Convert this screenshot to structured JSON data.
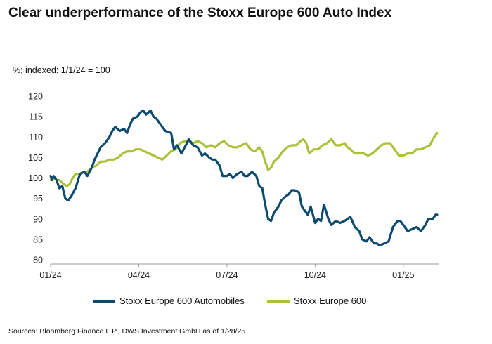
{
  "header": {
    "title": "Clear underperformance of the Stoxx Europe 600 Auto Index"
  },
  "colors": {
    "automobiles": "#0d4a70",
    "europe600": "#a9c23a",
    "axis": "#9a9a9a"
  },
  "chart_data": {
    "type": "line",
    "title": "Clear underperformance of the Stoxx Europe 600 Auto Index",
    "ylabel": "%; indexed: 1/1/24 = 100",
    "xlabel": "",
    "ylim": [
      80,
      120
    ],
    "yticks": [
      80,
      85,
      90,
      95,
      100,
      105,
      110,
      115,
      120
    ],
    "xlim": [
      0,
      13.2
    ],
    "xticks": [
      {
        "label": "01/24",
        "at": 0
      },
      {
        "label": "04/24",
        "at": 3
      },
      {
        "label": "07/24",
        "at": 6
      },
      {
        "label": "10/24",
        "at": 9
      },
      {
        "label": "01/25",
        "at": 12
      }
    ],
    "x_unit": "months since 1/1/24",
    "grid": false,
    "legend_position": "bottom",
    "series": [
      {
        "name": "Stoxx Europe 600 Automobiles",
        "color": "#0d4a70",
        "x": [
          0,
          0.05,
          0.1,
          0.2,
          0.3,
          0.4,
          0.5,
          0.6,
          0.7,
          0.85,
          1.0,
          1.15,
          1.25,
          1.4,
          1.5,
          1.6,
          1.7,
          1.85,
          2.0,
          2.1,
          2.2,
          2.35,
          2.5,
          2.6,
          2.7,
          2.8,
          2.95,
          3.05,
          3.15,
          3.25,
          3.4,
          3.5,
          3.6,
          3.75,
          3.9,
          4.1,
          4.2,
          4.3,
          4.45,
          4.6,
          4.7,
          4.85,
          5.0,
          5.15,
          5.25,
          5.4,
          5.5,
          5.6,
          5.75,
          5.85,
          6.0,
          6.1,
          6.2,
          6.35,
          6.5,
          6.6,
          6.7,
          6.85,
          7.0,
          7.1,
          7.2,
          7.3,
          7.4,
          7.5,
          7.6,
          7.75,
          7.85,
          8.0,
          8.1,
          8.2,
          8.3,
          8.45,
          8.55,
          8.65,
          8.75,
          8.85,
          9.0,
          9.1,
          9.2,
          9.3,
          9.45,
          9.55,
          9.7,
          9.85,
          10.0,
          10.1,
          10.2,
          10.35,
          10.5,
          10.6,
          10.75,
          10.85,
          11.0,
          11.1,
          11.2,
          11.35,
          11.5,
          11.65,
          11.8,
          11.9,
          12.0,
          12.15,
          12.3,
          12.45,
          12.6,
          12.75,
          12.85,
          13.0,
          13.1,
          13.15
        ],
        "values": [
          100.5,
          99.5,
          100.5,
          99.5,
          97.5,
          98.0,
          95.0,
          94.5,
          95.5,
          97.5,
          101.0,
          101.5,
          100.5,
          102.5,
          104.5,
          106.0,
          107.5,
          108.5,
          110.0,
          111.5,
          112.5,
          111.5,
          112.0,
          111.0,
          113.0,
          114.5,
          115.0,
          116.0,
          116.5,
          115.5,
          116.5,
          115.0,
          114.5,
          113.0,
          111.5,
          111.0,
          107.0,
          108.0,
          106.0,
          108.0,
          109.5,
          108.0,
          107.5,
          105.5,
          106.0,
          105.0,
          104.5,
          104.5,
          103.0,
          100.5,
          100.5,
          101.0,
          100.0,
          101.0,
          101.5,
          100.5,
          100.5,
          101.5,
          100.5,
          98.0,
          97.5,
          93.5,
          90.0,
          89.5,
          91.5,
          93.0,
          94.5,
          95.5,
          96.0,
          97.0,
          97.0,
          96.5,
          93.0,
          92.0,
          91.0,
          93.0,
          89.0,
          90.0,
          89.5,
          93.5,
          90.0,
          88.5,
          89.5,
          89.0,
          89.5,
          90.0,
          90.5,
          88.0,
          87.0,
          85.0,
          84.5,
          85.5,
          84.0,
          84.0,
          83.5,
          84.0,
          84.5,
          88.0,
          89.5,
          89.5,
          88.5,
          87.0,
          87.5,
          88.0,
          87.0,
          88.5,
          90.0,
          90.0,
          91.0,
          91.0
        ]
      },
      {
        "name": "Stoxx Europe 600",
        "color": "#a9c23a",
        "x": [
          0,
          0.1,
          0.2,
          0.3,
          0.45,
          0.55,
          0.65,
          0.75,
          0.85,
          1.0,
          1.1,
          1.25,
          1.4,
          1.55,
          1.7,
          1.85,
          2.0,
          2.15,
          2.3,
          2.45,
          2.6,
          2.75,
          2.9,
          3.05,
          3.2,
          3.35,
          3.5,
          3.65,
          3.8,
          3.95,
          4.1,
          4.25,
          4.4,
          4.55,
          4.7,
          4.85,
          5.0,
          5.15,
          5.3,
          5.45,
          5.6,
          5.75,
          5.9,
          6.05,
          6.2,
          6.35,
          6.5,
          6.65,
          6.8,
          6.95,
          7.1,
          7.2,
          7.3,
          7.4,
          7.5,
          7.6,
          7.75,
          7.9,
          8.05,
          8.2,
          8.35,
          8.5,
          8.6,
          8.7,
          8.8,
          8.95,
          9.1,
          9.25,
          9.4,
          9.55,
          9.7,
          9.85,
          10.0,
          10.1,
          10.2,
          10.35,
          10.5,
          10.65,
          10.8,
          10.95,
          11.1,
          11.25,
          11.4,
          11.55,
          11.7,
          11.85,
          12.0,
          12.15,
          12.3,
          12.45,
          12.6,
          12.75,
          12.9,
          13.05,
          13.15
        ],
        "values": [
          99.5,
          100.0,
          99.5,
          99.5,
          98.5,
          98.0,
          98.5,
          100.0,
          101.0,
          101.0,
          101.5,
          101.5,
          102.5,
          103.0,
          104.0,
          104.0,
          104.5,
          104.5,
          105.0,
          106.0,
          106.5,
          106.5,
          107.0,
          107.0,
          106.5,
          106.0,
          105.5,
          105.0,
          104.5,
          105.5,
          106.5,
          107.0,
          108.5,
          109.0,
          109.0,
          108.5,
          109.0,
          108.5,
          107.5,
          108.0,
          107.5,
          108.5,
          109.0,
          108.0,
          107.5,
          107.5,
          108.0,
          108.5,
          107.0,
          106.5,
          107.5,
          106.5,
          104.0,
          102.0,
          102.5,
          104.0,
          105.0,
          106.5,
          107.5,
          108.0,
          108.0,
          109.0,
          109.5,
          108.5,
          106.0,
          107.0,
          107.0,
          108.0,
          108.5,
          109.5,
          108.0,
          108.0,
          108.5,
          107.5,
          107.0,
          106.0,
          106.0,
          106.0,
          105.5,
          106.0,
          107.0,
          108.0,
          108.5,
          108.5,
          107.0,
          105.5,
          105.5,
          106.0,
          106.0,
          107.0,
          107.0,
          107.5,
          108.0,
          110.0,
          111.0
        ]
      }
    ]
  },
  "footer": {
    "source": "Sources: Bloomberg Finance L.P., DWS Investment GmbH as of 1/28/25"
  }
}
